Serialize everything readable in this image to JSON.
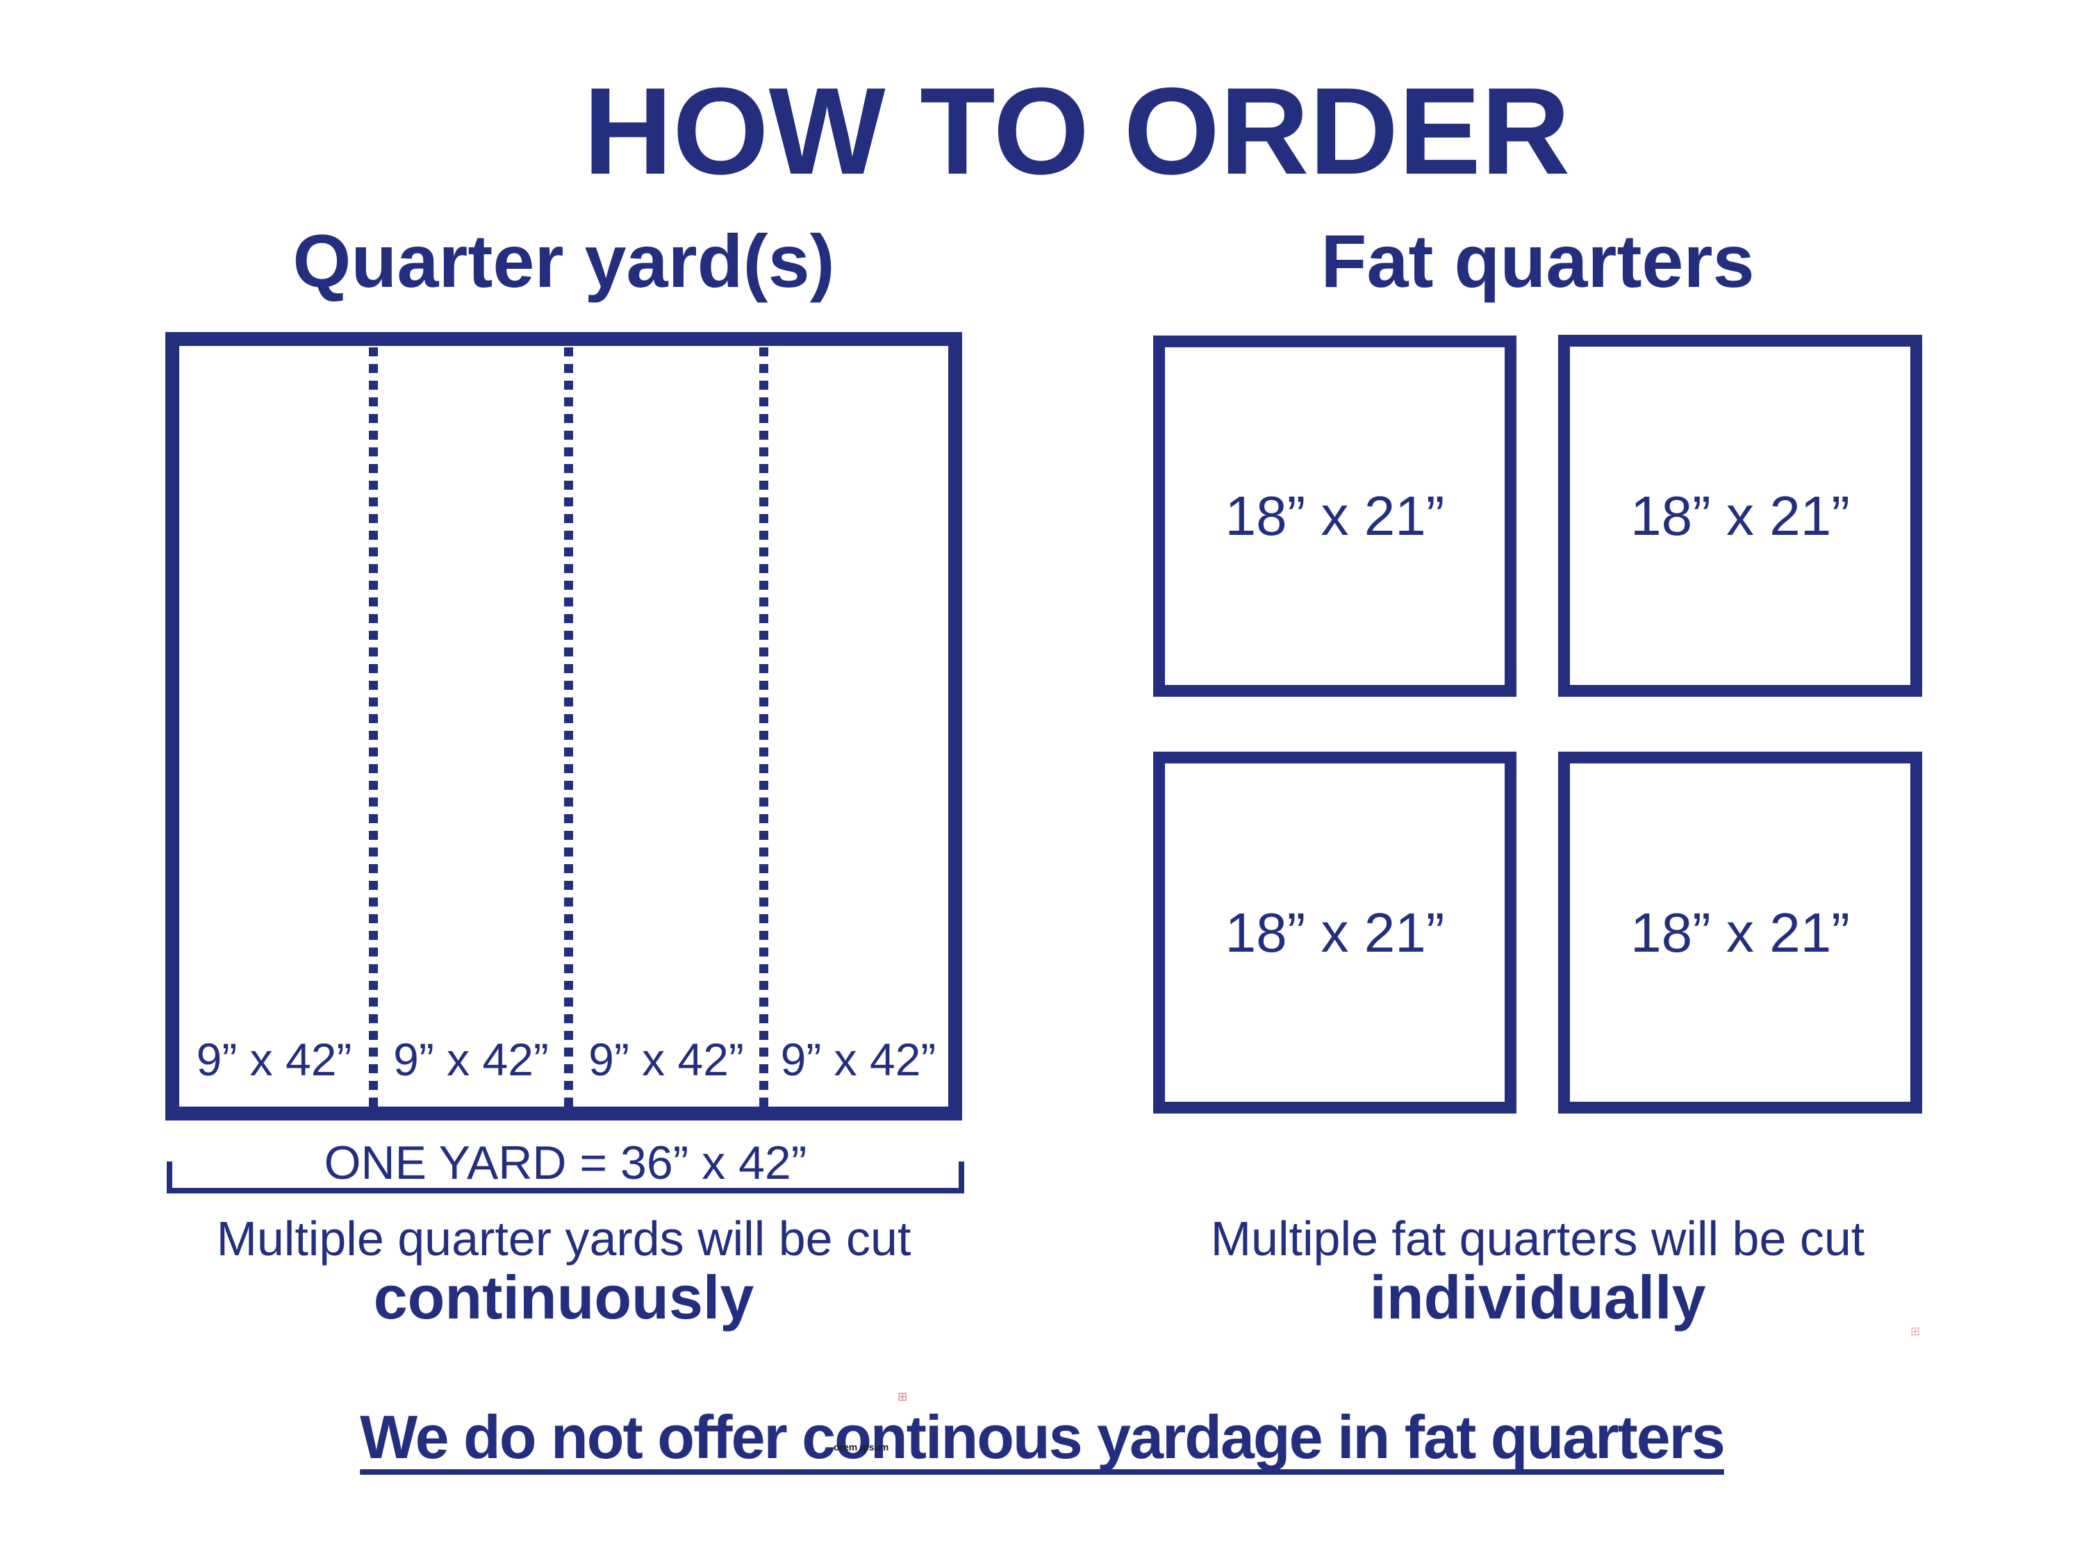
{
  "colors": {
    "navy": "#242e7f",
    "background": "#ffffff",
    "artifact_red": "#c96a6a"
  },
  "title": "HOW TO ORDER",
  "quarter_section": {
    "heading": "Quarter yard(s)",
    "strip_labels": [
      "9” x 42”",
      "9” x 42”",
      "9” x 42”",
      "9” x 42”"
    ],
    "bracket_label": "ONE YARD = 36” x 42”",
    "caption_line1": "Multiple quarter yards will be cut",
    "caption_line2": "continuously"
  },
  "fat_section": {
    "heading": "Fat quarters",
    "square_labels": [
      "18” x 21”",
      "18” x 21”",
      "18” x 21”",
      "18” x 21”"
    ],
    "caption_line1": "Multiple fat quarters will be cut",
    "caption_line2": "individually"
  },
  "footer": {
    "warning": "We do not offer continous yardage in fat quarters"
  },
  "artifacts": {
    "registration_mark": "⊞",
    "tiny_text": "orem ipsum"
  }
}
